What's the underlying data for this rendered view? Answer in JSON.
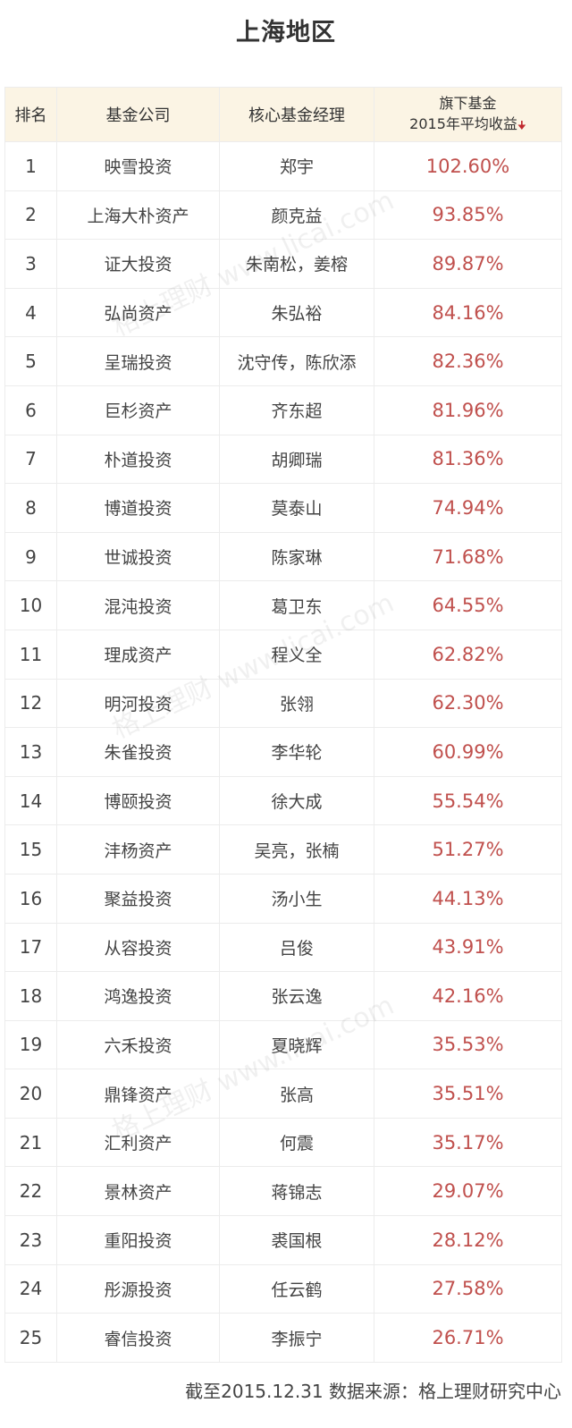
{
  "title": "上海地区",
  "table": {
    "headers": {
      "rank": "排名",
      "company": "基金公司",
      "manager": "核心基金经理",
      "return_line1": "旗下基金",
      "return_line2": "2015年平均收益",
      "sort_icon": "arrow-down-icon"
    },
    "rows": [
      {
        "rank": "1",
        "company": "映雪投资",
        "manager": "郑宇",
        "return": "102.60%"
      },
      {
        "rank": "2",
        "company": "上海大朴资产",
        "manager": "颜克益",
        "return": "93.85%"
      },
      {
        "rank": "3",
        "company": "证大投资",
        "manager": "朱南松，姜榕",
        "return": "89.87%"
      },
      {
        "rank": "4",
        "company": "弘尚资产",
        "manager": "朱弘裕",
        "return": "84.16%"
      },
      {
        "rank": "5",
        "company": "呈瑞投资",
        "manager": "沈守传，陈欣添",
        "return": "82.36%"
      },
      {
        "rank": "6",
        "company": "巨杉资产",
        "manager": "齐东超",
        "return": "81.96%"
      },
      {
        "rank": "7",
        "company": "朴道投资",
        "manager": "胡卿瑞",
        "return": "81.36%"
      },
      {
        "rank": "8",
        "company": "博道投资",
        "manager": "莫泰山",
        "return": "74.94%"
      },
      {
        "rank": "9",
        "company": "世诚投资",
        "manager": "陈家琳",
        "return": "71.68%"
      },
      {
        "rank": "10",
        "company": "混沌投资",
        "manager": "葛卫东",
        "return": "64.55%"
      },
      {
        "rank": "11",
        "company": "理成资产",
        "manager": "程义全",
        "return": "62.82%"
      },
      {
        "rank": "12",
        "company": "明河投资",
        "manager": "张翎",
        "return": "62.30%"
      },
      {
        "rank": "13",
        "company": "朱雀投资",
        "manager": "李华轮",
        "return": "60.99%"
      },
      {
        "rank": "14",
        "company": "博颐投资",
        "manager": "徐大成",
        "return": "55.54%"
      },
      {
        "rank": "15",
        "company": "沣杨资产",
        "manager": "吴亮，张楠",
        "return": "51.27%"
      },
      {
        "rank": "16",
        "company": "聚益投资",
        "manager": "汤小生",
        "return": "44.13%"
      },
      {
        "rank": "17",
        "company": "从容投资",
        "manager": "吕俊",
        "return": "43.91%"
      },
      {
        "rank": "18",
        "company": "鸿逸投资",
        "manager": "张云逸",
        "return": "42.16%"
      },
      {
        "rank": "19",
        "company": "六禾投资",
        "manager": "夏晓辉",
        "return": "35.53%"
      },
      {
        "rank": "20",
        "company": "鼎锋资产",
        "manager": "张高",
        "return": "35.51%"
      },
      {
        "rank": "21",
        "company": "汇利资产",
        "manager": "何震",
        "return": "35.17%"
      },
      {
        "rank": "22",
        "company": "景林资产",
        "manager": "蒋锦志",
        "return": "29.07%"
      },
      {
        "rank": "23",
        "company": "重阳投资",
        "manager": "裘国根",
        "return": "28.12%"
      },
      {
        "rank": "24",
        "company": "彤源投资",
        "manager": "任云鹤",
        "return": "27.58%"
      },
      {
        "rank": "25",
        "company": "睿信投资",
        "manager": "李振宁",
        "return": "26.71%"
      }
    ]
  },
  "footer": "截至2015.12.31  数据来源：格上理财研究中心",
  "watermark": "格上理财  www.licai.com",
  "colors": {
    "header_bg": "#fbf4e4",
    "return_text": "#c0504d",
    "sort_arrow": "#c0282d"
  }
}
